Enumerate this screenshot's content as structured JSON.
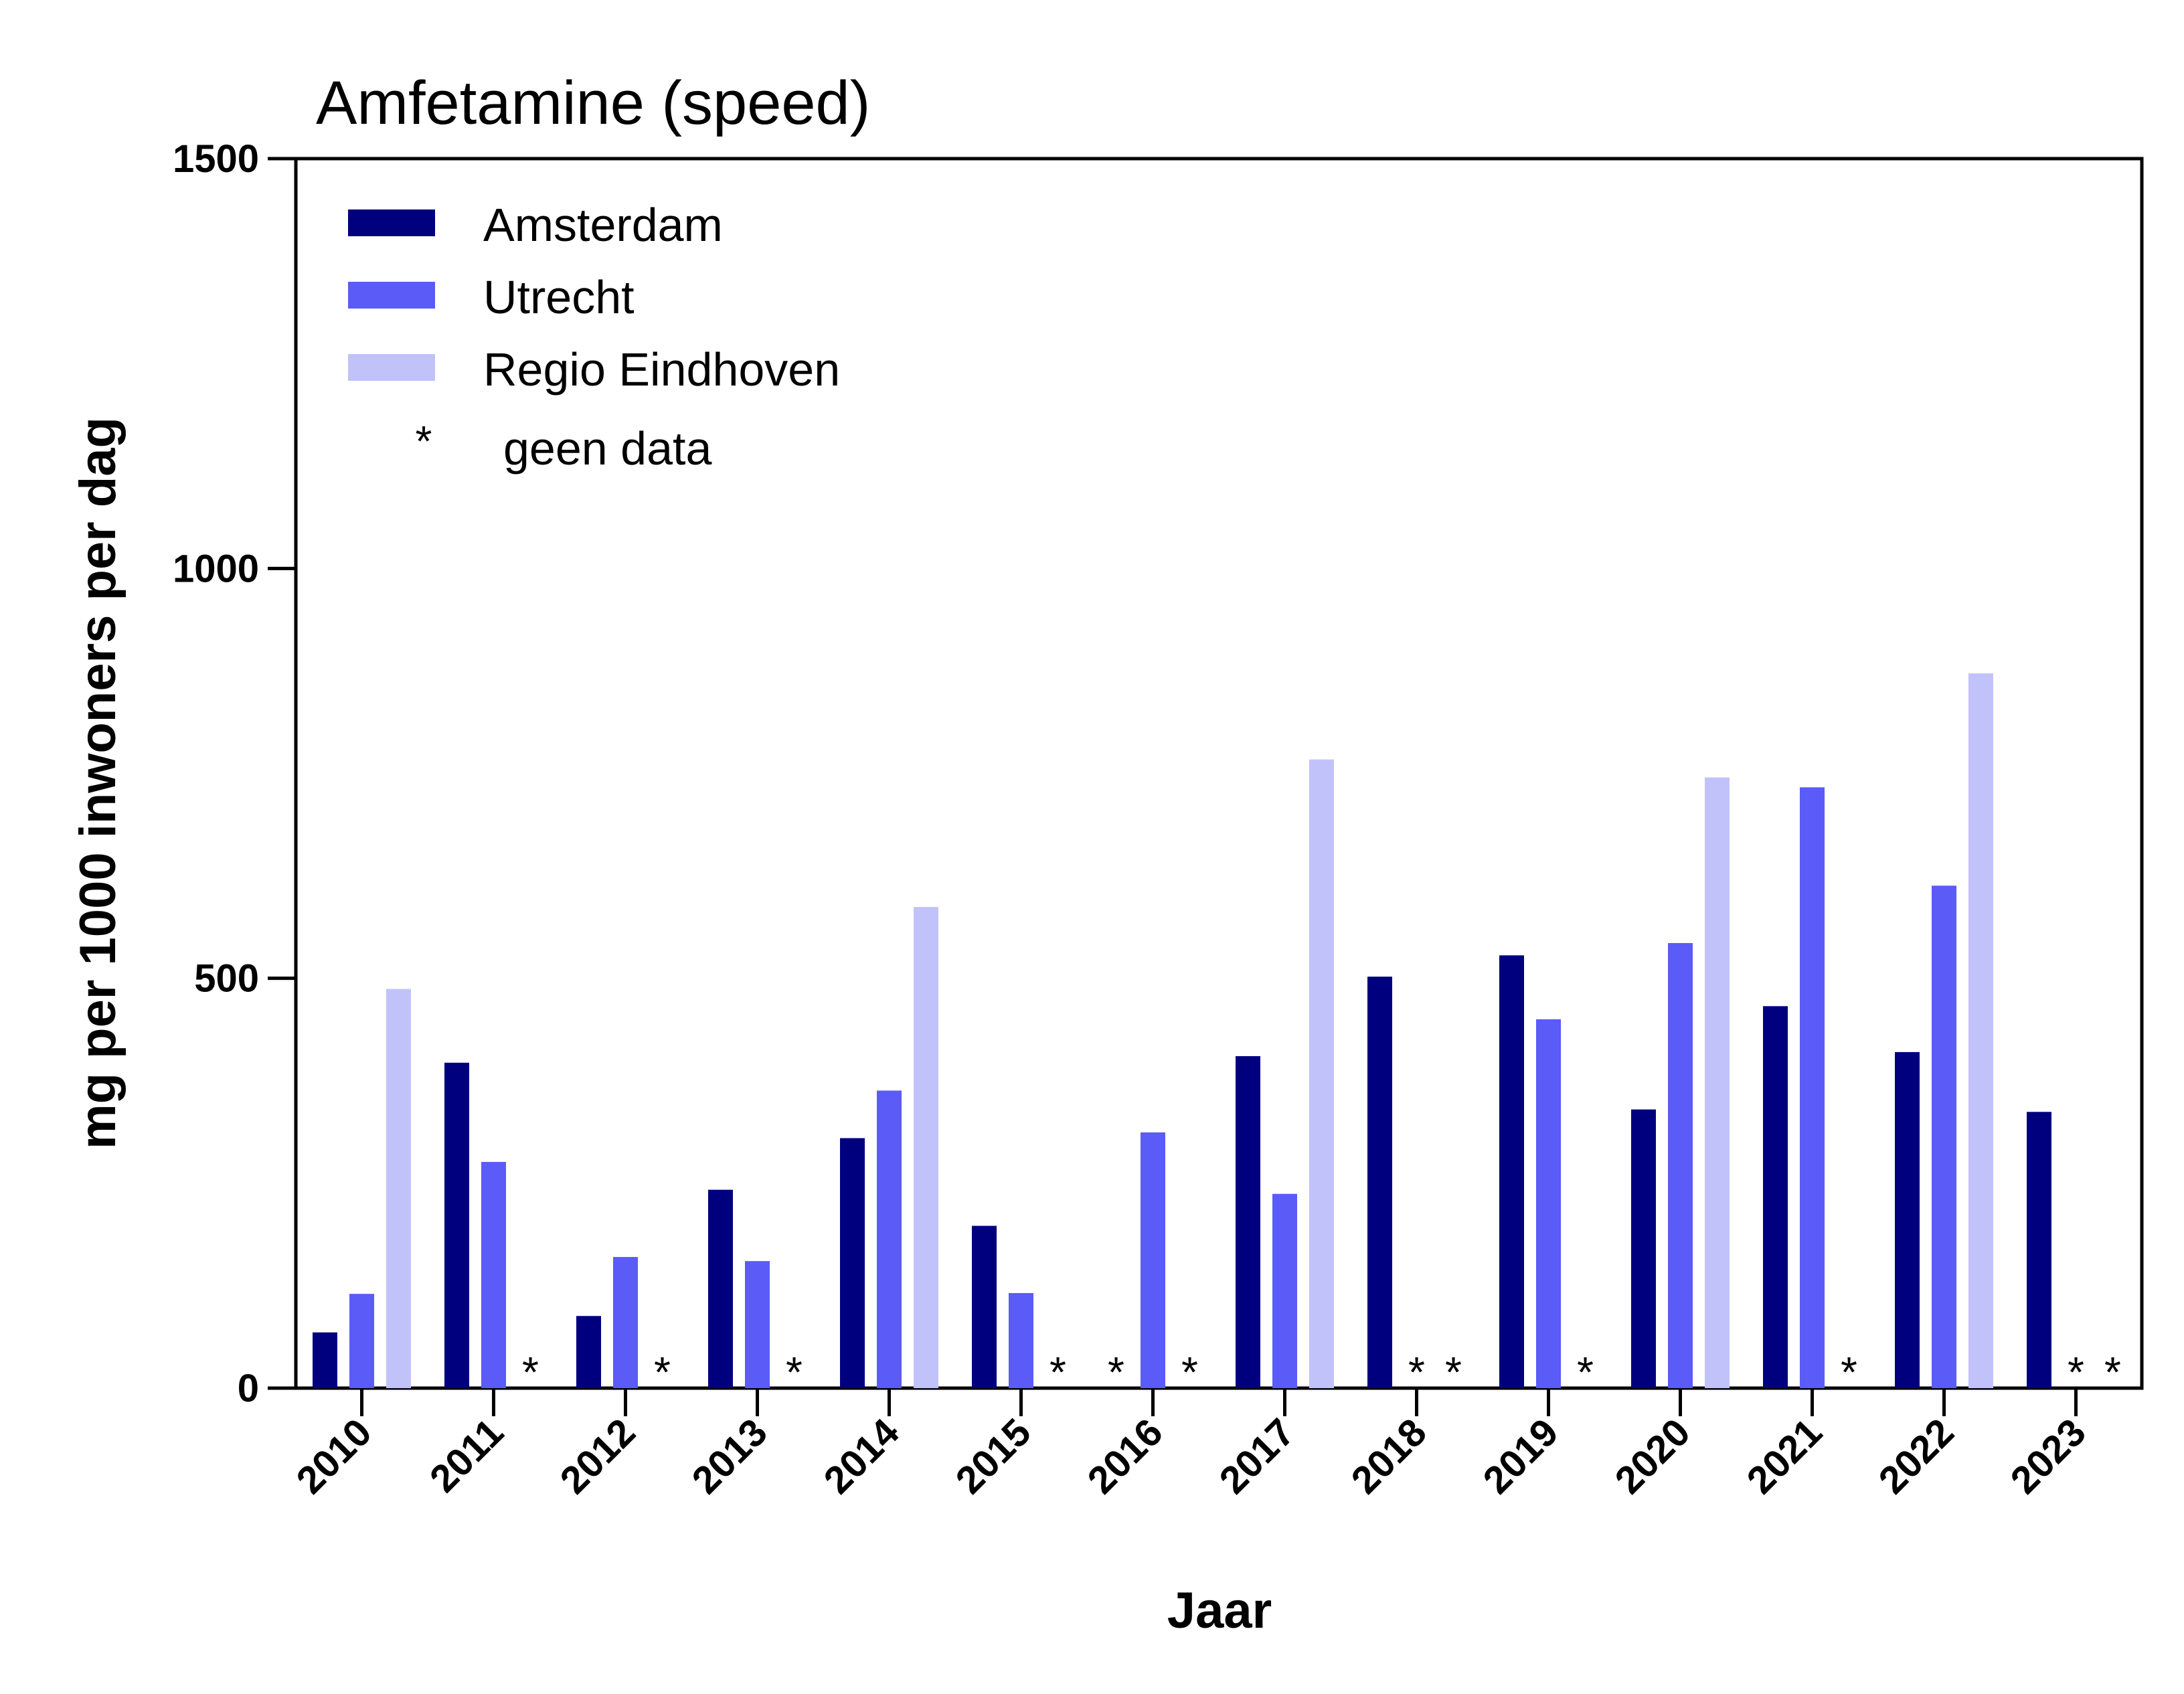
{
  "chart_data": {
    "type": "bar",
    "title": "Amfetamine (speed)",
    "xlabel": "Jaar",
    "ylabel": "mg per 1000 inwoners per dag",
    "ylim": [
      0,
      1500
    ],
    "yticks": [
      "0",
      "500",
      "1000",
      "1500"
    ],
    "categories": [
      "2010",
      "2011",
      "2012",
      "2013",
      "2014",
      "2015",
      "2016",
      "2017",
      "2018",
      "2019",
      "2020",
      "2021",
      "2022",
      "2023"
    ],
    "series": [
      {
        "name": "Amsterdam",
        "color": "#00007f",
        "values": [
          68,
          397,
          88,
          242,
          305,
          198,
          null,
          405,
          502,
          528,
          340,
          466,
          410,
          337
        ]
      },
      {
        "name": "Utrecht",
        "color": "#5b5bf7",
        "values": [
          115,
          276,
          160,
          155,
          363,
          116,
          312,
          237,
          null,
          450,
          543,
          733,
          613,
          null
        ]
      },
      {
        "name": "Regio Eindhoven",
        "color": "#c2c2fb",
        "values": [
          487,
          null,
          null,
          null,
          587,
          null,
          null,
          767,
          null,
          null,
          745,
          null,
          872,
          null
        ]
      }
    ],
    "legend": {
      "position": "top-left",
      "no_data_symbol": "*",
      "no_data_label": "geen data"
    },
    "no_data_marker": "*"
  }
}
